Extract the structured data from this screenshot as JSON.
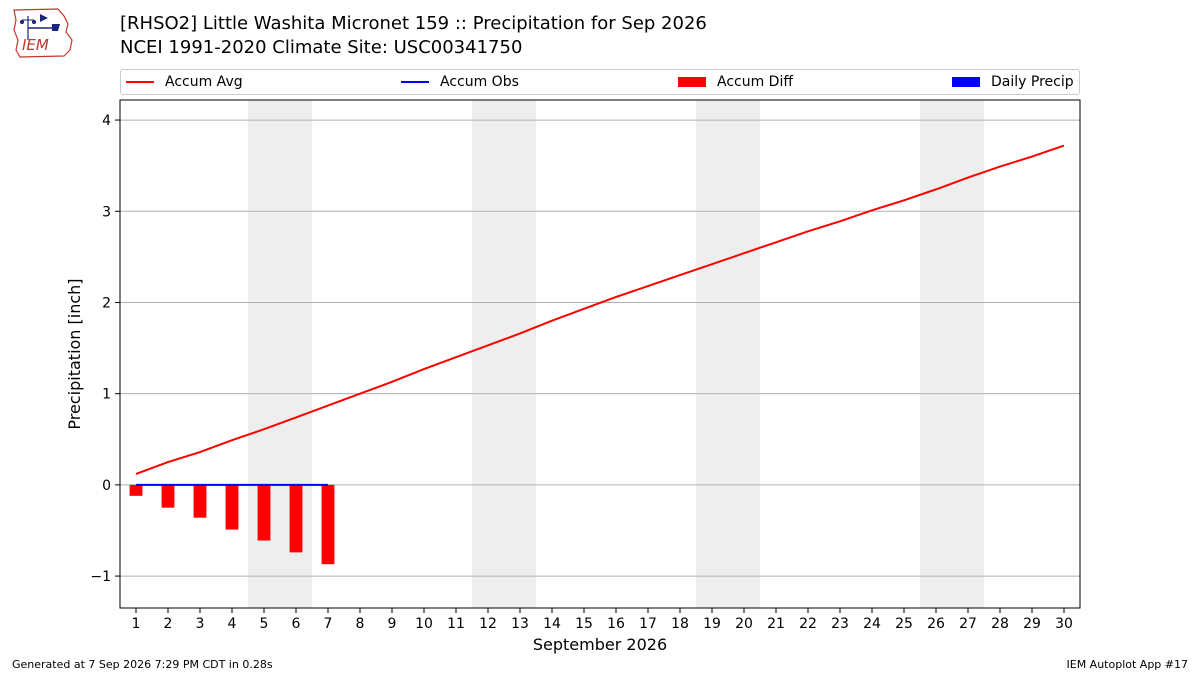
{
  "logo_text": "IEM",
  "title_line1": "[RHSO2] Little Washita Micronet 159 :: Precipitation for Sep 2026",
  "title_line2": "NCEI 1991-2020 Climate Site: USC00341750",
  "footer_left": "Generated at 7 Sep 2026 7:29 PM CDT in 0.28s",
  "footer_right": "IEM Autoplot App #17",
  "colors": {
    "accum_avg": "#ff0000",
    "accum_obs": "#0000ff",
    "accum_diff": "#ff0000",
    "daily_precip": "#0000ff",
    "weekend_shade": "#eeeeee",
    "grid": "#b0b0b0"
  },
  "chart_data": {
    "type": "line",
    "xlabel": "September 2026",
    "ylabel": "Precipitation [inch]",
    "ylim": [
      -1.35,
      4.22
    ],
    "xlim": [
      0.5,
      30.5
    ],
    "yticks": [
      -1,
      0,
      1,
      2,
      3,
      4
    ],
    "ytick_labels": [
      "−1",
      "0",
      "1",
      "2",
      "3",
      "4"
    ],
    "xticks": [
      1,
      2,
      3,
      4,
      5,
      6,
      7,
      8,
      9,
      10,
      11,
      12,
      13,
      14,
      15,
      16,
      17,
      18,
      19,
      20,
      21,
      22,
      23,
      24,
      25,
      26,
      27,
      28,
      29,
      30
    ],
    "grid": "horizontal",
    "legend_position": "top",
    "weekend_shading": [
      [
        5,
        6
      ],
      [
        12,
        13
      ],
      [
        19,
        20
      ],
      [
        26,
        27
      ]
    ],
    "legend": [
      {
        "name": "Accum Avg",
        "kind": "line",
        "color": "#ff0000"
      },
      {
        "name": "Accum Obs",
        "kind": "line",
        "color": "#0000ff"
      },
      {
        "name": "Accum Diff",
        "kind": "bar",
        "color": "#ff0000"
      },
      {
        "name": "Daily Precip",
        "kind": "bar",
        "color": "#0000ff"
      }
    ],
    "series": [
      {
        "name": "Accum Avg",
        "kind": "line",
        "x": [
          1,
          2,
          3,
          4,
          5,
          6,
          7,
          8,
          9,
          10,
          11,
          12,
          13,
          14,
          15,
          16,
          17,
          18,
          19,
          20,
          21,
          22,
          23,
          24,
          25,
          26,
          27,
          28,
          29,
          30
        ],
        "values": [
          0.12,
          0.25,
          0.36,
          0.49,
          0.61,
          0.74,
          0.87,
          1.0,
          1.13,
          1.27,
          1.4,
          1.53,
          1.66,
          1.8,
          1.93,
          2.06,
          2.18,
          2.3,
          2.42,
          2.54,
          2.66,
          2.78,
          2.89,
          3.01,
          3.12,
          3.24,
          3.37,
          3.49,
          3.6,
          3.72
        ]
      },
      {
        "name": "Accum Obs",
        "kind": "line",
        "x": [
          1,
          2,
          3,
          4,
          5,
          6,
          7
        ],
        "values": [
          0,
          0,
          0,
          0,
          0,
          0,
          0
        ]
      },
      {
        "name": "Accum Diff",
        "kind": "bar",
        "x": [
          1,
          2,
          3,
          4,
          5,
          6,
          7
        ],
        "values": [
          -0.12,
          -0.25,
          -0.36,
          -0.49,
          -0.61,
          -0.74,
          -0.87
        ]
      },
      {
        "name": "Daily Precip",
        "kind": "bar",
        "x": [
          1,
          2,
          3,
          4,
          5,
          6,
          7
        ],
        "values": [
          0,
          0,
          0,
          0,
          0,
          0,
          0
        ]
      }
    ]
  }
}
